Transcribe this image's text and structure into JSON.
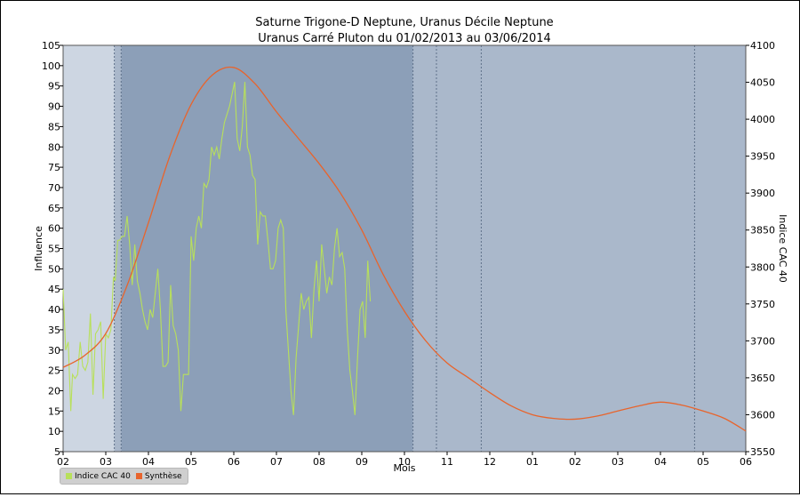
{
  "chart_data": {
    "type": "line",
    "title": [
      "Saturne Trigone-D Neptune, Uranus Décile Neptune",
      "Uranus Carré Pluton du 01/02/2013 au 03/06/2014"
    ],
    "xlabel": "Mois",
    "ylabel_left": "Influence",
    "ylabel_right": "Indice CAC 40",
    "x_ticks": [
      "02",
      "03",
      "04",
      "05",
      "06",
      "07",
      "08",
      "09",
      "10",
      "11",
      "12",
      "01",
      "02",
      "03",
      "04",
      "05",
      "06"
    ],
    "ylim_left": [
      5,
      105
    ],
    "yticks_left": [
      5,
      10,
      15,
      20,
      25,
      30,
      35,
      40,
      45,
      50,
      55,
      60,
      65,
      70,
      75,
      80,
      85,
      90,
      95,
      100,
      105
    ],
    "ylim_right": [
      3550,
      4100
    ],
    "yticks_right": [
      3550,
      3600,
      3650,
      3700,
      3750,
      3800,
      3850,
      3900,
      3950,
      4000,
      4050,
      4100
    ],
    "bands": [
      {
        "from": 0.0,
        "to": 1.2,
        "color": "#cdd6e2"
      },
      {
        "from": 1.2,
        "to": 1.36,
        "color": "#aab8cb"
      },
      {
        "from": 1.36,
        "to": 8.2,
        "color": "#8c9fb8"
      },
      {
        "from": 8.2,
        "to": 16.0,
        "color": "#aab8cb"
      }
    ],
    "vlines": [
      1.2,
      1.36,
      8.2,
      8.75,
      9.8,
      14.8
    ],
    "series": [
      {
        "name": "Indice CAC 40",
        "color": "#b8e05a",
        "axis": "left",
        "x": [
          0.0,
          0.06,
          0.12,
          0.18,
          0.22,
          0.28,
          0.34,
          0.4,
          0.46,
          0.52,
          0.58,
          0.64,
          0.7,
          0.76,
          0.82,
          0.88,
          0.94,
          1.0,
          1.06,
          1.12,
          1.18,
          1.22,
          1.28,
          1.32,
          1.38,
          1.44,
          1.5,
          1.56,
          1.62,
          1.68,
          1.74,
          1.8,
          1.86,
          1.92,
          1.98,
          2.04,
          2.1,
          2.16,
          2.22,
          2.28,
          2.34,
          2.4,
          2.46,
          2.52,
          2.58,
          2.64,
          2.7,
          2.76,
          2.82,
          2.88,
          2.94,
          3.0,
          3.06,
          3.12,
          3.18,
          3.24,
          3.3,
          3.36,
          3.42,
          3.48,
          3.54,
          3.6,
          3.66,
          3.72,
          3.78,
          3.84,
          3.9,
          3.96,
          4.02,
          4.08,
          4.14,
          4.2,
          4.26,
          4.32,
          4.38,
          4.44,
          4.5,
          4.56,
          4.62,
          4.68,
          4.74,
          4.8,
          4.86,
          4.92,
          4.98,
          5.04,
          5.1,
          5.16,
          5.22,
          5.28,
          5.34,
          5.4,
          5.46,
          5.52,
          5.58,
          5.64,
          5.7,
          5.76,
          5.82,
          5.88,
          5.94,
          6.0,
          6.06,
          6.12,
          6.18,
          6.24,
          6.3,
          6.36,
          6.42,
          6.48,
          6.54,
          6.6,
          6.66,
          6.72,
          6.78,
          6.84,
          6.9,
          6.96,
          7.02,
          7.08,
          7.14,
          7.2
        ],
        "y": [
          45,
          30,
          32,
          15,
          24,
          23,
          24,
          32,
          26,
          25,
          27,
          39,
          19,
          34,
          35,
          37,
          18,
          34,
          33,
          35,
          48,
          47,
          57,
          57,
          58,
          58,
          63,
          56,
          46,
          56,
          47,
          44,
          40,
          37,
          35,
          40,
          38,
          44,
          50,
          40,
          26,
          26,
          27,
          46,
          36,
          34,
          30,
          15,
          24,
          24,
          24,
          58,
          52,
          60,
          63,
          60,
          71,
          70,
          72,
          80,
          78,
          80,
          77,
          82,
          86,
          88,
          90,
          93,
          96,
          82,
          79,
          85,
          96,
          80,
          78,
          73,
          72,
          56,
          64,
          63,
          63,
          57,
          50,
          50,
          52,
          60,
          62,
          60,
          40,
          30,
          20,
          14,
          28,
          36,
          44,
          40,
          42,
          43,
          33,
          45,
          52,
          42,
          56,
          50,
          44,
          48,
          46,
          55,
          60,
          53,
          54,
          50,
          35,
          25,
          20,
          14,
          28,
          40,
          42,
          33,
          52,
          42
        ]
      },
      {
        "name": "Synthèse",
        "color": "#e8642c",
        "axis": "right",
        "x": [
          0.0,
          0.5,
          1.0,
          1.5,
          2.0,
          2.5,
          3.0,
          3.5,
          4.0,
          4.5,
          5.0,
          5.5,
          6.0,
          6.5,
          7.0,
          7.5,
          8.0,
          8.5,
          9.0,
          9.5,
          10.0,
          10.5,
          11.0,
          11.5,
          12.0,
          12.5,
          13.0,
          13.5,
          14.0,
          14.5,
          15.0,
          15.5,
          16.0
        ],
        "y": [
          3664,
          3680,
          3710,
          3775,
          3860,
          3950,
          4020,
          4060,
          4070,
          4048,
          4010,
          3975,
          3940,
          3900,
          3850,
          3790,
          3740,
          3700,
          3670,
          3650,
          3630,
          3612,
          3600,
          3595,
          3594,
          3598,
          3605,
          3612,
          3617,
          3613,
          3605,
          3595,
          3578
        ]
      }
    ],
    "legend": {
      "position": "bottom-left",
      "items": [
        "Indice CAC 40",
        "Synthèse"
      ]
    },
    "grid": false
  }
}
